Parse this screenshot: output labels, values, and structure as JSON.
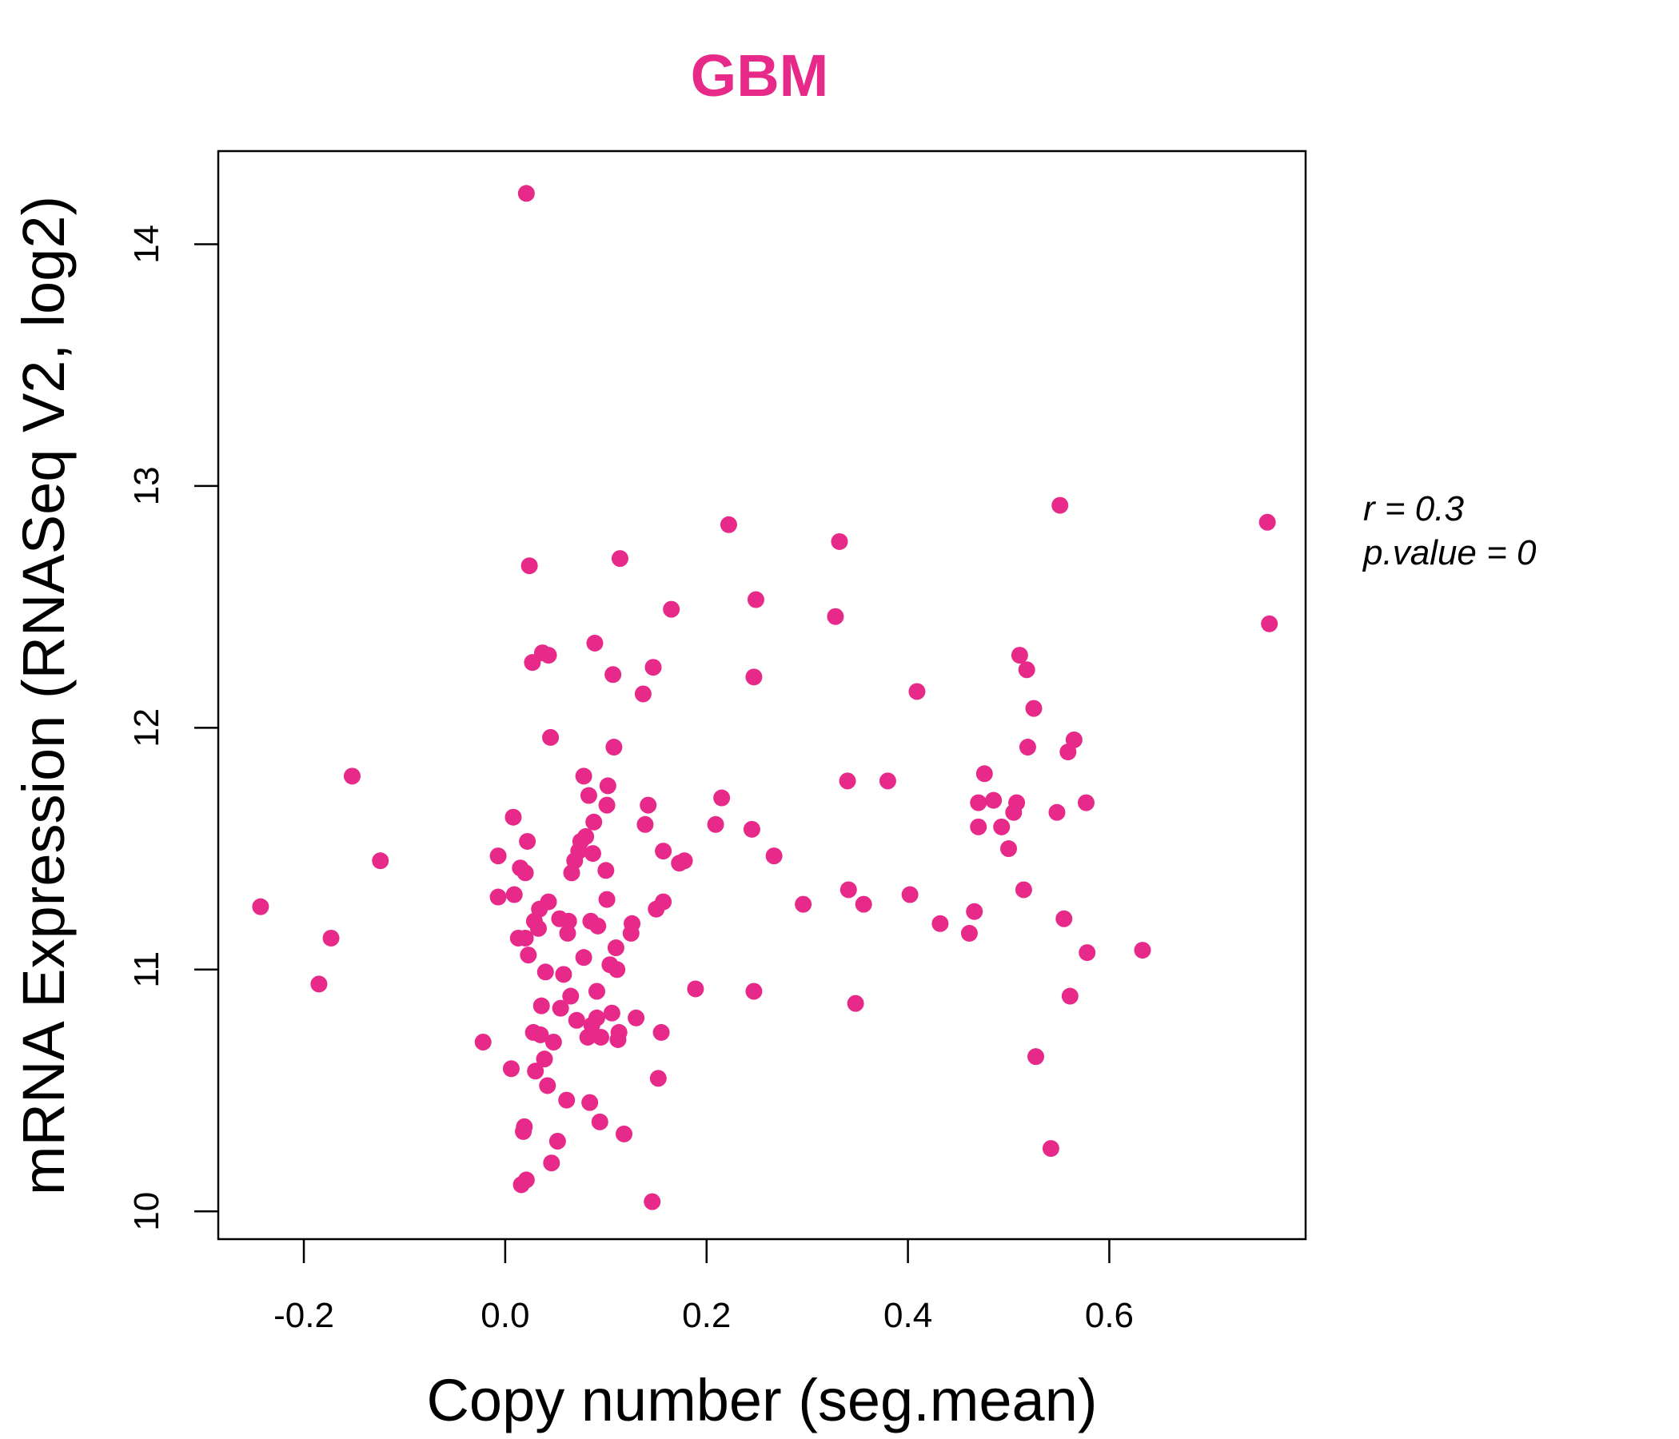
{
  "colors": {
    "accent": "#E7298A",
    "axis": "#000000",
    "background": "#FFFFFF"
  },
  "stats": {
    "r_text": "r = 0.3",
    "p_text": "p.value = 0"
  },
  "chart_data": {
    "type": "scatter",
    "title": "GBM",
    "xlabel": "Copy number (seg.mean)",
    "ylabel": "mRNA Expression (RNASeq V2, log2)",
    "xlim": [
      -0.285,
      0.795
    ],
    "ylim": [
      9.885,
      14.385
    ],
    "x_ticks": [
      -0.2,
      0.0,
      0.2,
      0.4,
      0.6
    ],
    "x_tick_labels": [
      "-0.2",
      "0.0",
      "0.2",
      "0.4",
      "0.6"
    ],
    "y_ticks": [
      10,
      11,
      12,
      13,
      14
    ],
    "y_tick_labels": [
      "10",
      "11",
      "12",
      "13",
      "14"
    ],
    "grid": false,
    "series": [
      {
        "color": "#E7298A",
        "points": [
          [
            -0.243,
            11.26
          ],
          [
            -0.185,
            10.94
          ],
          [
            -0.173,
            11.13
          ],
          [
            -0.152,
            11.8
          ],
          [
            -0.124,
            11.45
          ],
          [
            -0.022,
            10.7
          ],
          [
            -0.007,
            11.47
          ],
          [
            -0.007,
            11.3
          ],
          [
            0.006,
            10.59
          ],
          [
            0.008,
            11.63
          ],
          [
            0.009,
            11.31
          ],
          [
            0.013,
            11.13
          ],
          [
            0.015,
            11.42
          ],
          [
            0.016,
            10.11
          ],
          [
            0.018,
            10.33
          ],
          [
            0.019,
            10.35
          ],
          [
            0.02,
            11.13
          ],
          [
            0.02,
            11.4
          ],
          [
            0.021,
            10.13
          ],
          [
            0.021,
            14.21
          ],
          [
            0.022,
            11.53
          ],
          [
            0.023,
            11.06
          ],
          [
            0.024,
            12.67
          ],
          [
            0.027,
            12.27
          ],
          [
            0.028,
            10.74
          ],
          [
            0.029,
            11.2
          ],
          [
            0.03,
            10.58
          ],
          [
            0.033,
            11.17
          ],
          [
            0.034,
            11.25
          ],
          [
            0.035,
            10.73
          ],
          [
            0.036,
            10.85
          ],
          [
            0.037,
            12.31
          ],
          [
            0.039,
            10.63
          ],
          [
            0.04,
            10.99
          ],
          [
            0.042,
            10.52
          ],
          [
            0.043,
            11.28
          ],
          [
            0.043,
            12.3
          ],
          [
            0.045,
            11.96
          ],
          [
            0.046,
            10.2
          ],
          [
            0.048,
            10.7
          ],
          [
            0.052,
            10.29
          ],
          [
            0.054,
            11.21
          ],
          [
            0.055,
            10.84
          ],
          [
            0.058,
            10.98
          ],
          [
            0.061,
            10.46
          ],
          [
            0.062,
            11.15
          ],
          [
            0.063,
            11.2
          ],
          [
            0.065,
            10.89
          ],
          [
            0.066,
            11.4
          ],
          [
            0.069,
            11.45
          ],
          [
            0.071,
            10.79
          ],
          [
            0.073,
            11.49
          ],
          [
            0.075,
            11.53
          ],
          [
            0.078,
            11.05
          ],
          [
            0.078,
            11.8
          ],
          [
            0.08,
            11.55
          ],
          [
            0.082,
            10.72
          ],
          [
            0.083,
            11.72
          ],
          [
            0.084,
            10.45
          ],
          [
            0.085,
            11.2
          ],
          [
            0.086,
            10.77
          ],
          [
            0.087,
            11.48
          ],
          [
            0.088,
            11.61
          ],
          [
            0.089,
            12.35
          ],
          [
            0.091,
            10.8
          ],
          [
            0.091,
            10.91
          ],
          [
            0.092,
            11.18
          ],
          [
            0.094,
            10.37
          ],
          [
            0.095,
            10.72
          ],
          [
            0.1,
            11.41
          ],
          [
            0.101,
            11.29
          ],
          [
            0.101,
            11.68
          ],
          [
            0.102,
            11.76
          ],
          [
            0.104,
            11.02
          ],
          [
            0.106,
            10.82
          ],
          [
            0.107,
            12.22
          ],
          [
            0.108,
            11.92
          ],
          [
            0.11,
            11.09
          ],
          [
            0.111,
            11.0
          ],
          [
            0.112,
            10.71
          ],
          [
            0.113,
            10.74
          ],
          [
            0.114,
            12.7
          ],
          [
            0.118,
            10.32
          ],
          [
            0.125,
            11.15
          ],
          [
            0.126,
            11.19
          ],
          [
            0.13,
            10.8
          ],
          [
            0.137,
            12.14
          ],
          [
            0.139,
            11.6
          ],
          [
            0.142,
            11.68
          ],
          [
            0.146,
            10.04
          ],
          [
            0.147,
            12.25
          ],
          [
            0.15,
            11.25
          ],
          [
            0.152,
            10.55
          ],
          [
            0.155,
            10.74
          ],
          [
            0.157,
            11.28
          ],
          [
            0.157,
            11.49
          ],
          [
            0.165,
            12.49
          ],
          [
            0.173,
            11.44
          ],
          [
            0.178,
            11.45
          ],
          [
            0.189,
            10.92
          ],
          [
            0.209,
            11.6
          ],
          [
            0.215,
            11.71
          ],
          [
            0.222,
            12.84
          ],
          [
            0.245,
            11.58
          ],
          [
            0.247,
            10.91
          ],
          [
            0.247,
            12.21
          ],
          [
            0.249,
            12.53
          ],
          [
            0.267,
            11.47
          ],
          [
            0.296,
            11.27
          ],
          [
            0.328,
            12.46
          ],
          [
            0.332,
            12.77
          ],
          [
            0.34,
            11.78
          ],
          [
            0.341,
            11.33
          ],
          [
            0.348,
            10.86
          ],
          [
            0.356,
            11.27
          ],
          [
            0.38,
            11.78
          ],
          [
            0.402,
            11.31
          ],
          [
            0.409,
            12.15
          ],
          [
            0.432,
            11.19
          ],
          [
            0.461,
            11.15
          ],
          [
            0.466,
            11.24
          ],
          [
            0.47,
            11.69
          ],
          [
            0.47,
            11.59
          ],
          [
            0.476,
            11.81
          ],
          [
            0.485,
            11.7
          ],
          [
            0.493,
            11.59
          ],
          [
            0.5,
            11.5
          ],
          [
            0.505,
            11.65
          ],
          [
            0.508,
            11.69
          ],
          [
            0.511,
            12.3
          ],
          [
            0.515,
            11.33
          ],
          [
            0.518,
            12.24
          ],
          [
            0.519,
            11.92
          ],
          [
            0.525,
            12.08
          ],
          [
            0.527,
            10.64
          ],
          [
            0.542,
            10.26
          ],
          [
            0.548,
            11.65
          ],
          [
            0.551,
            12.92
          ],
          [
            0.555,
            11.21
          ],
          [
            0.559,
            11.9
          ],
          [
            0.561,
            10.89
          ],
          [
            0.565,
            11.95
          ],
          [
            0.577,
            11.69
          ],
          [
            0.578,
            11.07
          ],
          [
            0.633,
            11.08
          ],
          [
            0.757,
            12.85
          ],
          [
            0.759,
            12.43
          ]
        ]
      }
    ]
  }
}
